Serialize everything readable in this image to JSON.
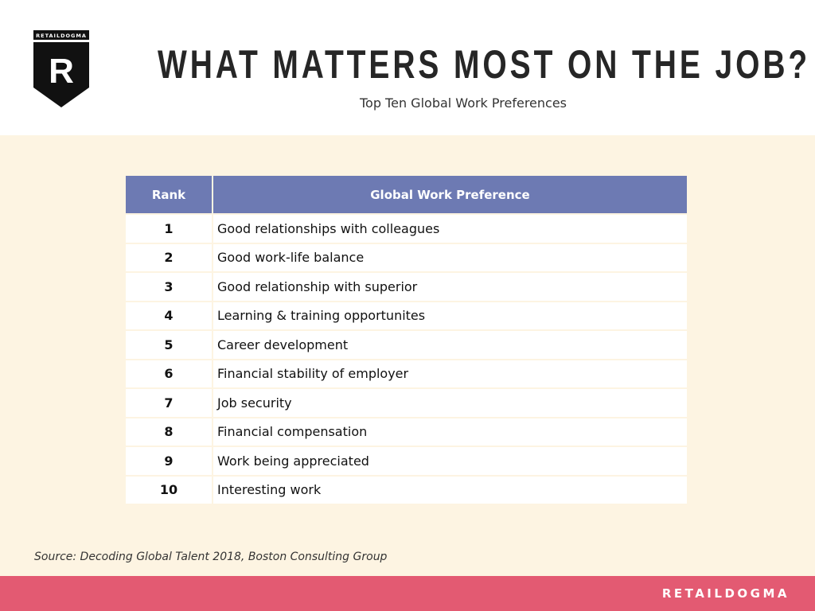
{
  "logo": {
    "text": "RETAILDOGMA",
    "letter": "R"
  },
  "header": {
    "title": "WHAT MATTERS MOST ON THE JOB?",
    "subtitle": "Top Ten Global Work Preferences"
  },
  "table": {
    "columns": [
      "Rank",
      "Global Work Preference"
    ],
    "rows": [
      {
        "rank": "1",
        "pref": "Good relationships with colleagues"
      },
      {
        "rank": "2",
        "pref": "Good work-life balance"
      },
      {
        "rank": "3",
        "pref": "Good relationship with superior"
      },
      {
        "rank": "4",
        "pref": "Learning & training opportunites"
      },
      {
        "rank": "5",
        "pref": "Career development"
      },
      {
        "rank": "6",
        "pref": "Financial stability of employer"
      },
      {
        "rank": "7",
        "pref": "Job security"
      },
      {
        "rank": "8",
        "pref": "Financial compensation"
      },
      {
        "rank": "9",
        "pref": "Work being appreciated"
      },
      {
        "rank": "10",
        "pref": "Interesting work"
      }
    ]
  },
  "source": "Source: Decoding Global Talent 2018, Boston Consulting Group",
  "footer": {
    "brand": "RETAILDOGMA"
  },
  "colors": {
    "header": "#6d7ab3",
    "background": "#fdf4e2",
    "footer": "#e35a72"
  }
}
